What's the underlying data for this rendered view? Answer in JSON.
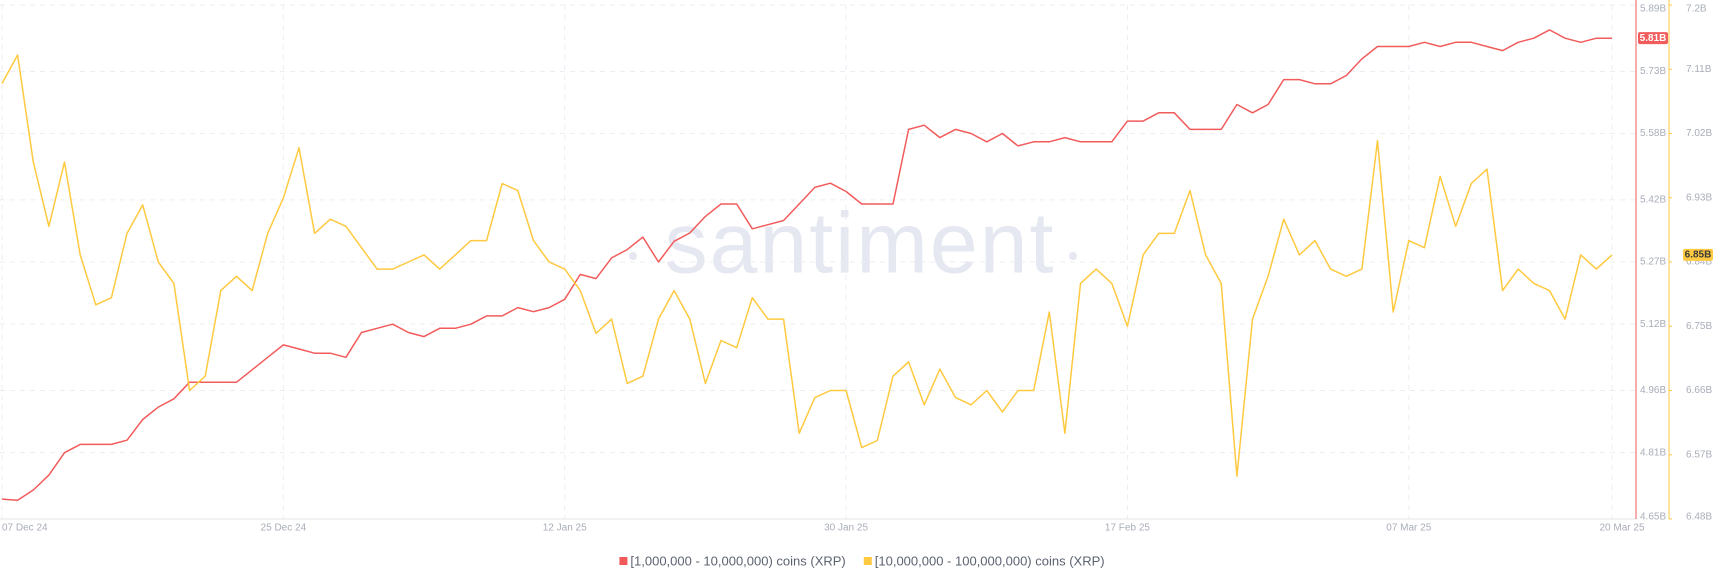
{
  "chart_data": {
    "type": "line",
    "watermark": "santiment",
    "x": [
      "2024-12-07",
      "2024-12-08",
      "2024-12-09",
      "2024-12-10",
      "2024-12-11",
      "2024-12-12",
      "2024-12-13",
      "2024-12-14",
      "2024-12-15",
      "2024-12-16",
      "2024-12-17",
      "2024-12-18",
      "2024-12-19",
      "2024-12-20",
      "2024-12-21",
      "2024-12-22",
      "2024-12-23",
      "2024-12-24",
      "2024-12-25",
      "2024-12-26",
      "2024-12-27",
      "2024-12-28",
      "2024-12-29",
      "2024-12-30",
      "2024-12-31",
      "2025-01-01",
      "2025-01-02",
      "2025-01-03",
      "2025-01-04",
      "2025-01-05",
      "2025-01-06",
      "2025-01-07",
      "2025-01-08",
      "2025-01-09",
      "2025-01-10",
      "2025-01-11",
      "2025-01-12",
      "2025-01-13",
      "2025-01-14",
      "2025-01-15",
      "2025-01-16",
      "2025-01-17",
      "2025-01-18",
      "2025-01-19",
      "2025-01-20",
      "2025-01-21",
      "2025-01-22",
      "2025-01-23",
      "2025-01-24",
      "2025-01-25",
      "2025-01-26",
      "2025-01-27",
      "2025-01-28",
      "2025-01-29",
      "2025-01-30",
      "2025-01-31",
      "2025-02-01",
      "2025-02-02",
      "2025-02-03",
      "2025-02-04",
      "2025-02-05",
      "2025-02-06",
      "2025-02-07",
      "2025-02-08",
      "2025-02-09",
      "2025-02-10",
      "2025-02-11",
      "2025-02-12",
      "2025-02-13",
      "2025-02-14",
      "2025-02-15",
      "2025-02-16",
      "2025-02-17",
      "2025-02-18",
      "2025-02-19",
      "2025-02-20",
      "2025-02-21",
      "2025-02-22",
      "2025-02-23",
      "2025-02-24",
      "2025-02-25",
      "2025-02-26",
      "2025-02-27",
      "2025-02-28",
      "2025-03-01",
      "2025-03-02",
      "2025-03-03",
      "2025-03-04",
      "2025-03-05",
      "2025-03-06",
      "2025-03-07",
      "2025-03-08",
      "2025-03-09",
      "2025-03-10",
      "2025-03-11",
      "2025-03-12",
      "2025-03-13",
      "2025-03-14",
      "2025-03-15",
      "2025-03-16",
      "2025-03-17",
      "2025-03-18",
      "2025-03-19",
      "2025-03-20"
    ],
    "xlim": [
      "2024-12-07",
      "2025-03-20"
    ],
    "xticks": [
      {
        "value": "2024-12-07",
        "label": "07 Dec 24"
      },
      {
        "value": "2024-12-25",
        "label": "25 Dec 24"
      },
      {
        "value": "2025-01-12",
        "label": "12 Jan 25"
      },
      {
        "value": "2025-01-30",
        "label": "30 Jan 25"
      },
      {
        "value": "2025-02-17",
        "label": "17 Feb 25"
      },
      {
        "value": "2025-03-07",
        "label": "07 Mar 25"
      },
      {
        "value": "2025-03-20",
        "label": "20 Mar 25"
      }
    ],
    "ylim": [
      4.65,
      5.89
    ],
    "yticks": [
      {
        "value": 4.65,
        "label": "4.65B"
      },
      {
        "value": 4.81,
        "label": "4.81B"
      },
      {
        "value": 4.96,
        "label": "4.96B"
      },
      {
        "value": 5.12,
        "label": "5.12B"
      },
      {
        "value": 5.27,
        "label": "5.27B"
      },
      {
        "value": 5.42,
        "label": "5.42B"
      },
      {
        "value": 5.58,
        "label": "5.58B"
      },
      {
        "value": 5.73,
        "label": "5.73B"
      },
      {
        "value": 5.89,
        "label": "5.89B"
      }
    ],
    "y2lim": [
      6.48,
      7.2
    ],
    "y2ticks": [
      {
        "value": 6.48,
        "label": "6.48B"
      },
      {
        "value": 6.57,
        "label": "6.57B"
      },
      {
        "value": 6.66,
        "label": "6.66B"
      },
      {
        "value": 6.75,
        "label": "6.75B"
      },
      {
        "value": 6.84,
        "label": "6.84B"
      },
      {
        "value": 6.93,
        "label": "6.93B"
      },
      {
        "value": 7.02,
        "label": "7.02B"
      },
      {
        "value": 7.11,
        "label": "7.11B"
      },
      {
        "value": 7.2,
        "label": "7.2B"
      }
    ],
    "grid": true,
    "series": [
      {
        "name": "[1,000,000 - 10,000,000) coins (XRP)",
        "color": "#f25b5b",
        "axis": "y",
        "current_label": "5.81B",
        "values": [
          4.698,
          4.695,
          4.72,
          4.756,
          4.81,
          4.83,
          4.83,
          4.83,
          4.84,
          4.89,
          4.92,
          4.94,
          4.98,
          4.98,
          4.98,
          4.98,
          5.01,
          5.04,
          5.07,
          5.06,
          5.05,
          5.05,
          5.04,
          5.1,
          5.11,
          5.12,
          5.1,
          5.09,
          5.11,
          5.11,
          5.12,
          5.14,
          5.14,
          5.16,
          5.15,
          5.16,
          5.18,
          5.24,
          5.23,
          5.28,
          5.3,
          5.33,
          5.27,
          5.32,
          5.34,
          5.38,
          5.41,
          5.41,
          5.35,
          5.36,
          5.37,
          5.41,
          5.45,
          5.46,
          5.44,
          5.41,
          5.41,
          5.41,
          5.59,
          5.6,
          5.57,
          5.59,
          5.58,
          5.56,
          5.58,
          5.55,
          5.56,
          5.56,
          5.57,
          5.56,
          5.56,
          5.56,
          5.61,
          5.61,
          5.63,
          5.63,
          5.59,
          5.59,
          5.59,
          5.65,
          5.63,
          5.65,
          5.71,
          5.71,
          5.7,
          5.7,
          5.72,
          5.76,
          5.79,
          5.79,
          5.79,
          5.8,
          5.79,
          5.8,
          5.8,
          5.79,
          5.78,
          5.8,
          5.81,
          5.83,
          5.81,
          5.8,
          5.81,
          5.81
        ]
      },
      {
        "name": "[10,000,000 - 100,000,000) coins (XRP)",
        "color": "#ffc940",
        "axis": "y2",
        "current_label": "6.85B",
        "values": [
          7.09,
          7.13,
          6.98,
          6.89,
          6.98,
          6.85,
          6.78,
          6.79,
          6.88,
          6.92,
          6.84,
          6.81,
          6.66,
          6.68,
          6.8,
          6.82,
          6.8,
          6.88,
          6.93,
          7.0,
          6.88,
          6.9,
          6.89,
          6.86,
          6.83,
          6.83,
          6.84,
          6.85,
          6.83,
          6.85,
          6.87,
          6.87,
          6.95,
          6.94,
          6.87,
          6.84,
          6.83,
          6.8,
          6.74,
          6.76,
          6.67,
          6.68,
          6.76,
          6.8,
          6.76,
          6.67,
          6.73,
          6.72,
          6.79,
          6.76,
          6.76,
          6.6,
          6.65,
          6.66,
          6.66,
          6.58,
          6.59,
          6.68,
          6.7,
          6.64,
          6.69,
          6.65,
          6.64,
          6.66,
          6.63,
          6.66,
          6.66,
          6.77,
          6.6,
          6.81,
          6.83,
          6.81,
          6.75,
          6.85,
          6.88,
          6.88,
          6.94,
          6.85,
          6.81,
          6.54,
          6.76,
          6.82,
          6.9,
          6.85,
          6.87,
          6.83,
          6.82,
          6.83,
          7.01,
          6.77,
          6.87,
          6.86,
          6.96,
          6.89,
          6.95,
          6.97,
          6.8,
          6.83,
          6.81,
          6.8,
          6.76,
          6.85,
          6.83,
          6.85
        ]
      }
    ]
  }
}
